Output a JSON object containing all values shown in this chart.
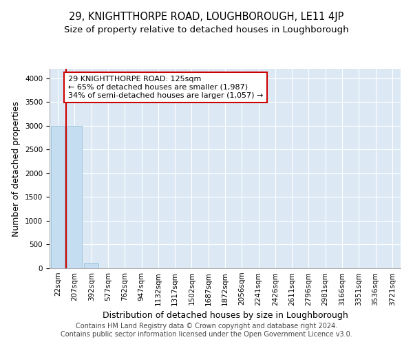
{
  "title": "29, KNIGHTTHORPE ROAD, LOUGHBOROUGH, LE11 4JP",
  "subtitle": "Size of property relative to detached houses in Loughborough",
  "xlabel": "Distribution of detached houses by size in Loughborough",
  "ylabel": "Number of detached properties",
  "categories": [
    "22sqm",
    "207sqm",
    "392sqm",
    "577sqm",
    "762sqm",
    "947sqm",
    "1132sqm",
    "1317sqm",
    "1502sqm",
    "1687sqm",
    "1872sqm",
    "2056sqm",
    "2241sqm",
    "2426sqm",
    "2611sqm",
    "2796sqm",
    "2981sqm",
    "3166sqm",
    "3351sqm",
    "3536sqm",
    "3721sqm"
  ],
  "values": [
    3000,
    3000,
    110,
    0,
    0,
    0,
    0,
    0,
    0,
    0,
    0,
    0,
    0,
    0,
    0,
    0,
    0,
    0,
    0,
    0,
    0
  ],
  "bar_color": "#c5ddf0",
  "bar_edge_color": "#8bbad4",
  "background_color": "#dce9f5",
  "grid_color": "#ffffff",
  "property_line_x": 0.5,
  "annotation_title": "29 KNIGHTTHORPE ROAD: 125sqm",
  "annotation_line1": "← 65% of detached houses are smaller (1,987)",
  "annotation_line2": "34% of semi-detached houses are larger (1,057) →",
  "annotation_box_color": "#cc0000",
  "ylim": [
    0,
    4200
  ],
  "yticks": [
    0,
    500,
    1000,
    1500,
    2000,
    2500,
    3000,
    3500,
    4000
  ],
  "footer1": "Contains HM Land Registry data © Crown copyright and database right 2024.",
  "footer2": "Contains public sector information licensed under the Open Government Licence v3.0.",
  "title_fontsize": 10.5,
  "subtitle_fontsize": 9.5,
  "axis_label_fontsize": 9,
  "tick_fontsize": 7.5,
  "annotation_fontsize": 8,
  "footer_fontsize": 7
}
